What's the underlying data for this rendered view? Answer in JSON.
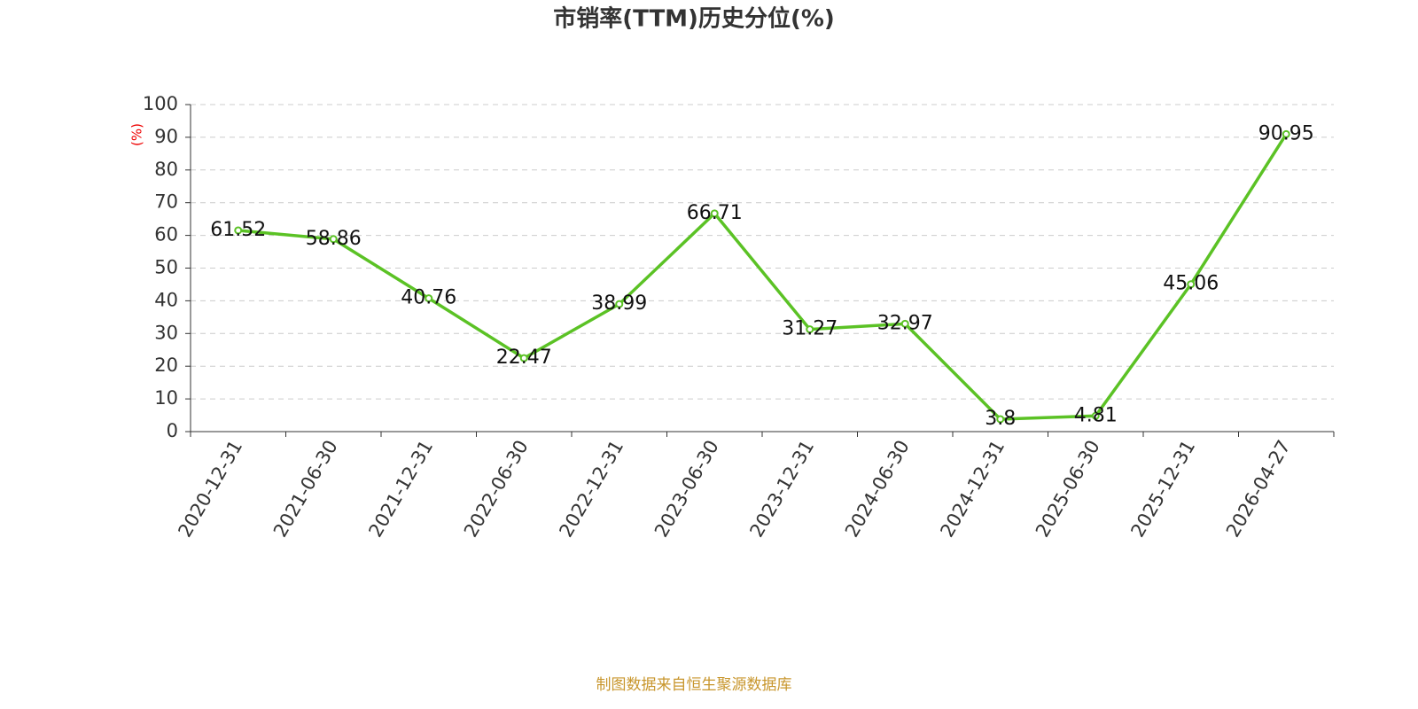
{
  "chart_data": {
    "type": "line",
    "title": "市销率(TTM)历史分位(%)",
    "y_label": "(%)",
    "source": "制图数据来自恒生聚源数据库",
    "categories": [
      "2020-12-31",
      "2021-06-30",
      "2021-12-31",
      "2022-06-30",
      "2022-12-31",
      "2023-06-30",
      "2023-12-31",
      "2024-06-30",
      "2024-12-31",
      "2025-06-30",
      "2025-12-31",
      "2026-04-27"
    ],
    "values": [
      61.52,
      58.86,
      40.76,
      22.47,
      38.99,
      66.71,
      31.27,
      32.97,
      3.8,
      4.81,
      45.06,
      90.95
    ],
    "color": "#5bc225",
    "ylim": [
      0,
      100
    ],
    "yticks": [
      0,
      10,
      20,
      30,
      40,
      50,
      60,
      70,
      80,
      90,
      100
    ],
    "grid": true
  }
}
